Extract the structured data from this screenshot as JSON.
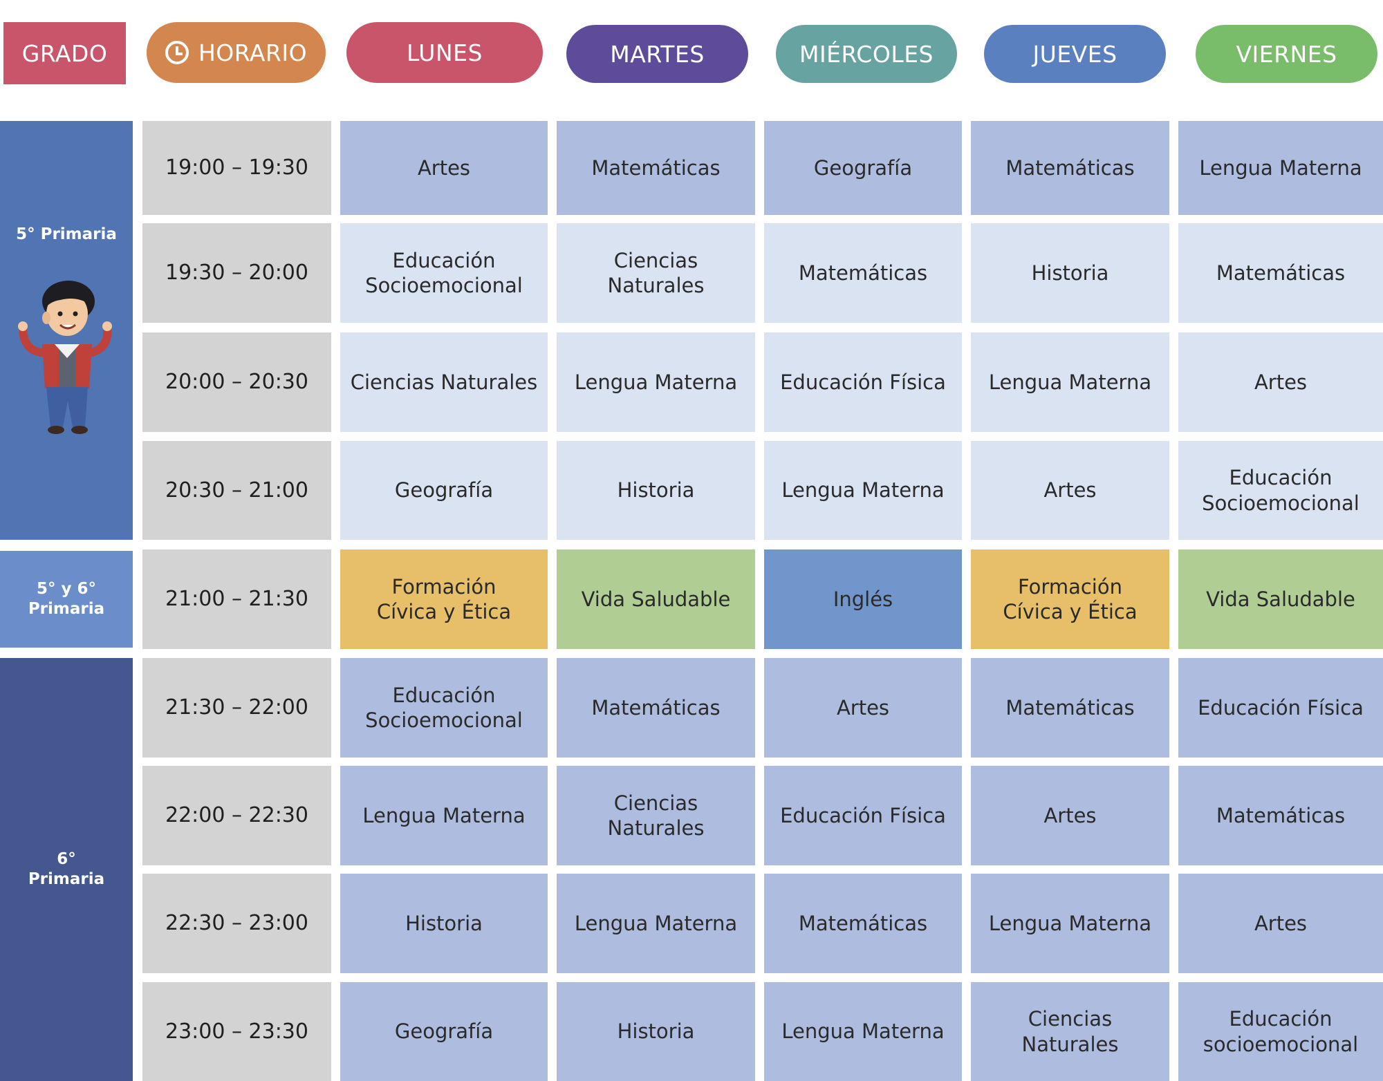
{
  "header": {
    "grado": "GRADO",
    "horario": "HORARIO",
    "days": [
      "LUNES",
      "MARTES",
      "MIÉRCOLES",
      "JUEVES",
      "VIERNES"
    ]
  },
  "colors": {
    "grado": "#c9556a",
    "horario": "#d3874e",
    "lunes": "#c9556a",
    "martes": "#5e4c9b",
    "miercoles": "#67a3a0",
    "jueves": "#5b80c0",
    "viernes": "#79bc6a",
    "grade5": "#5174b3",
    "grade56": "#6b8ecb",
    "grade6": "#44588f",
    "cell_dark": "#aebcdf",
    "cell_light": "#d9e3f1",
    "time": "#d3d3d3",
    "civica": "#e7bf68",
    "saludable": "#b0ce94",
    "ingles": "#7196cc"
  },
  "grades": {
    "g5": "5° Primaria",
    "g56": "5° y 6°\nPrimaria",
    "g6": "6°\nPrimaria"
  },
  "rows": [
    {
      "time": "19:00 – 19:30",
      "cells": [
        "Artes",
        "Matemáticas",
        "Geografía",
        "Matemáticas",
        "Lengua Materna"
      ]
    },
    {
      "time": "19:30 – 20:00",
      "cells": [
        "Educación\nSocioemocional",
        "Ciencias\nNaturales",
        "Matemáticas",
        "Historia",
        "Matemáticas"
      ]
    },
    {
      "time": "20:00 – 20:30",
      "cells": [
        "Ciencias Naturales",
        "Lengua Materna",
        "Educación Física",
        "Lengua Materna",
        "Artes"
      ]
    },
    {
      "time": "20:30 – 21:00",
      "cells": [
        "Geografía",
        "Historia",
        "Lengua Materna",
        "Artes",
        "Educación\nSocioemocional"
      ]
    },
    {
      "time": "21:00 – 21:30",
      "cells": [
        "Formación\nCívica y Ética",
        "Vida Saludable",
        "Inglés",
        "Formación\nCívica y Ética",
        "Vida Saludable"
      ]
    },
    {
      "time": "21:30 – 22:00",
      "cells": [
        "Educación\nSocioemocional",
        "Matemáticas",
        "Artes",
        "Matemáticas",
        "Educación Física"
      ]
    },
    {
      "time": "22:00 – 22:30",
      "cells": [
        "Lengua Materna",
        "Ciencias\nNaturales",
        "Educación Física",
        "Artes",
        "Matemáticas"
      ]
    },
    {
      "time": "22:30 – 23:00",
      "cells": [
        "Historia",
        "Lengua Materna",
        "Matemáticas",
        "Lengua Materna",
        "Artes"
      ]
    },
    {
      "time": "23:00 – 23:30",
      "cells": [
        "Geografía",
        "Historia",
        "Lengua Materna",
        "Ciencias\nNaturales",
        "Educación\nsocioemocional"
      ]
    }
  ]
}
